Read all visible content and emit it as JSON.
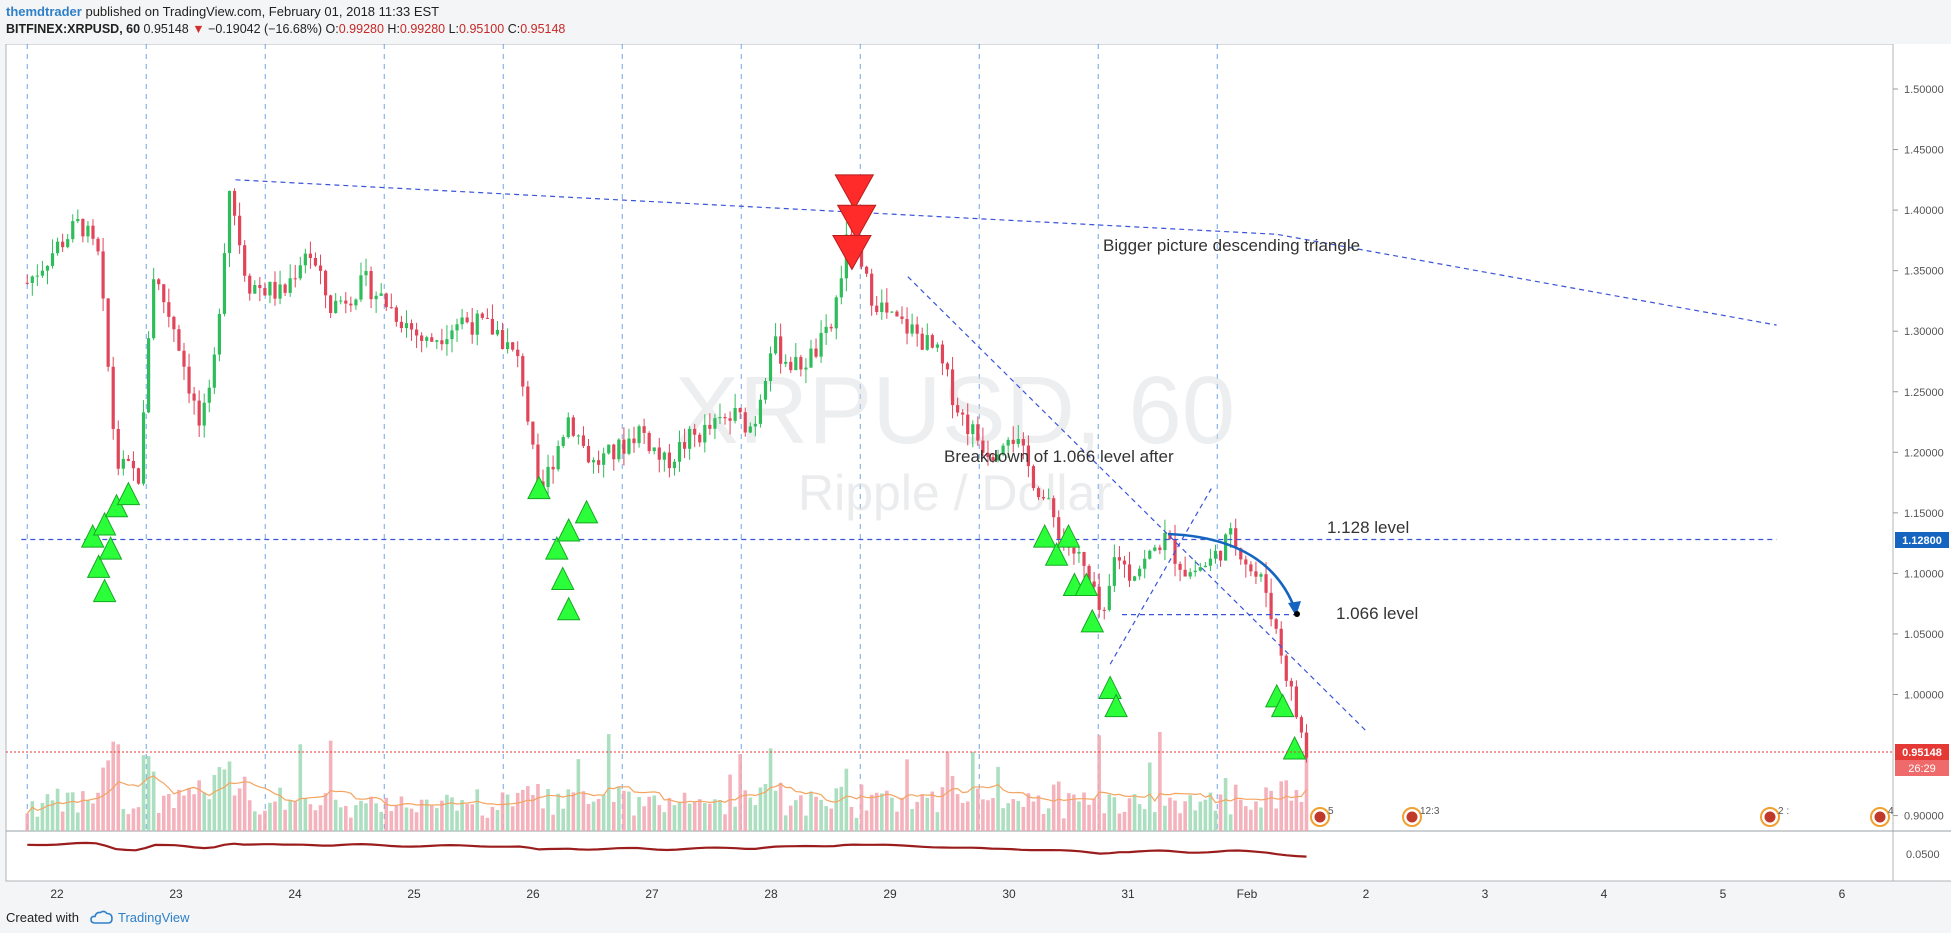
{
  "header": {
    "author": "themdtrader",
    "published": " published on TradingView.com, February 01, 2018 11:33 EST",
    "symbol": "BITFINEX:XRPUSD, 60",
    "price": "0.95148",
    "change": "−0.19042 (−16.68%)",
    "ohlc": {
      "o_label": "O:",
      "o": "0.99280",
      "h_label": "H:",
      "h": "0.99280",
      "l_label": "L:",
      "l": "0.95100",
      "c_label": "C:",
      "c": "0.95148"
    }
  },
  "watermark": {
    "symbol": "XRPUSD, 60",
    "name": "Ripple / Dollar"
  },
  "footer": {
    "created": "Created with",
    "brand": "TradingView"
  },
  "colors": {
    "up": "#2ebd5a",
    "down": "#e0455a",
    "blue_line": "#3a54d8",
    "grid_vline": "#4a90e2",
    "price_label": "#e53935",
    "level_label": "#1565c0",
    "arrow": "#1565c0",
    "osc": "#9b1c1c",
    "vol_ma": "#f4a460"
  },
  "chart_data": {
    "type": "candlestick",
    "symbol": "BITFINEX:XRPUSD",
    "interval": "60",
    "y_axis_ticks": [
      "1.50000",
      "1.45000",
      "1.40000",
      "1.35000",
      "1.30000",
      "1.25000",
      "1.20000",
      "1.15000",
      "1.10000",
      "1.05000",
      "1.00000",
      "0.90000"
    ],
    "ylim": [
      0.9,
      1.52
    ],
    "x_axis_ticks": [
      "22",
      "23",
      "24",
      "25",
      "26",
      "27",
      "28",
      "29",
      "30",
      "31",
      "Feb",
      "2",
      "3",
      "4",
      "5",
      "6"
    ],
    "last_price_label": "0.95148",
    "countdown_label": "26:29",
    "level_price_label": "1.12800",
    "osc_tick": "0.0500",
    "annotations": [
      {
        "text": "Bigger picture descending triangle"
      },
      {
        "text": "Breakdown of 1.066 level after"
      },
      {
        "text": "1.128 level"
      },
      {
        "text": "1.066 level"
      }
    ],
    "event_labels": [
      "5",
      "12:3",
      "2 :",
      "4"
    ],
    "price_series": {
      "x_day": [
        21.75,
        22.0,
        22.2,
        22.35,
        22.5,
        22.7,
        22.8,
        23.0,
        23.2,
        23.3,
        23.45,
        23.6,
        23.9,
        24.1,
        24.3,
        24.6,
        24.9,
        25.1,
        25.4,
        25.7,
        25.9,
        26.05,
        26.15,
        26.3,
        26.5,
        26.7,
        26.9,
        27.1,
        27.3,
        27.5,
        27.7,
        27.85,
        28.0,
        28.2,
        28.35,
        28.5,
        28.65,
        28.75,
        28.85,
        29.0,
        29.2,
        29.4,
        29.6,
        29.75,
        29.85,
        30.0,
        30.15,
        30.3,
        30.45,
        30.6,
        30.75,
        30.8,
        30.9,
        31.0,
        31.15,
        31.3,
        31.5,
        31.7,
        31.85,
        31.95,
        32.05,
        32.15,
        32.25,
        32.4,
        32.5
      ],
      "y": [
        1.34,
        1.37,
        1.39,
        1.36,
        1.19,
        1.18,
        1.35,
        1.3,
        1.22,
        1.25,
        1.42,
        1.34,
        1.33,
        1.37,
        1.32,
        1.34,
        1.31,
        1.29,
        1.31,
        1.3,
        1.27,
        1.16,
        1.19,
        1.23,
        1.19,
        1.2,
        1.22,
        1.19,
        1.21,
        1.22,
        1.23,
        1.22,
        1.29,
        1.27,
        1.28,
        1.3,
        1.38,
        1.35,
        1.33,
        1.31,
        1.3,
        1.28,
        1.23,
        1.21,
        1.2,
        1.22,
        1.19,
        1.16,
        1.13,
        1.11,
        1.07,
        1.06,
        1.12,
        1.1,
        1.11,
        1.13,
        1.1,
        1.11,
        1.13,
        1.12,
        1.1,
        1.09,
        1.05,
        0.99,
        0.95
      ]
    },
    "lines": [
      {
        "name": "bigger-triangle-upper",
        "points": [
          [
            23.5,
            1.425
          ],
          [
            32.25,
            1.38
          ],
          [
            36.45,
            1.305
          ]
        ]
      },
      {
        "name": "descending-trendline",
        "points": [
          [
            29.15,
            1.345
          ],
          [
            33.0,
            0.97
          ]
        ]
      },
      {
        "name": "level-1128",
        "points": [
          [
            21.7,
            1.128
          ],
          [
            36.45,
            1.128
          ]
        ]
      },
      {
        "name": "level-1066",
        "points": [
          [
            30.95,
            1.066
          ],
          [
            32.45,
            1.066
          ]
        ]
      },
      {
        "name": "rising-support",
        "points": [
          [
            30.85,
            1.025
          ],
          [
            31.7,
            1.17
          ]
        ]
      }
    ],
    "sell_signals": [
      [
        28.7,
        1.415
      ],
      [
        28.72,
        1.39
      ],
      [
        28.68,
        1.365
      ]
    ],
    "buy_signals": [
      [
        22.3,
        1.13
      ],
      [
        22.4,
        1.14
      ],
      [
        22.5,
        1.155
      ],
      [
        22.35,
        1.105
      ],
      [
        22.45,
        1.12
      ],
      [
        22.6,
        1.165
      ],
      [
        22.4,
        1.085
      ],
      [
        26.05,
        1.17
      ],
      [
        26.2,
        1.12
      ],
      [
        26.3,
        1.135
      ],
      [
        26.45,
        1.15
      ],
      [
        26.25,
        1.095
      ],
      [
        26.3,
        1.07
      ],
      [
        30.3,
        1.13
      ],
      [
        30.4,
        1.115
      ],
      [
        30.5,
        1.13
      ],
      [
        30.55,
        1.09
      ],
      [
        30.65,
        1.09
      ],
      [
        30.7,
        1.06
      ],
      [
        30.85,
        1.005
      ],
      [
        30.9,
        0.99
      ],
      [
        32.25,
        0.998
      ],
      [
        32.3,
        0.99
      ],
      [
        32.4,
        0.955
      ]
    ]
  }
}
